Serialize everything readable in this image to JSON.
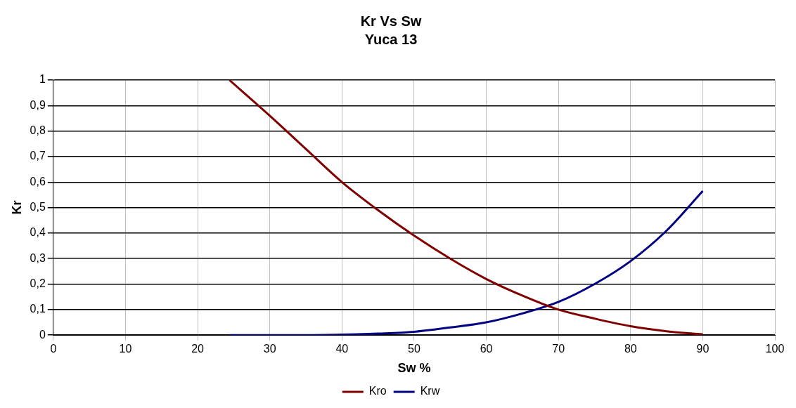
{
  "chart_data": {
    "type": "line",
    "title": "Kr Vs Sw",
    "subtitle": "Yuca 13",
    "xlabel": "Sw %",
    "ylabel": "Kr",
    "xlim": [
      0,
      100
    ],
    "xticks": [
      0,
      10,
      20,
      30,
      40,
      50,
      60,
      70,
      80,
      90,
      100
    ],
    "ylim": [
      0,
      1
    ],
    "yticks": [
      0,
      {
        "value": 0.1,
        "label": "0,1"
      },
      {
        "value": 0.2,
        "label": "0,2"
      },
      {
        "value": 0.3,
        "label": "0,3"
      },
      {
        "value": 0.4,
        "label": "0,4"
      },
      {
        "value": 0.5,
        "label": "0,5"
      },
      {
        "value": 0.6,
        "label": "0,6"
      },
      {
        "value": 0.7,
        "label": "0,7"
      },
      {
        "value": 0.8,
        "label": "0,8"
      },
      {
        "value": 0.9,
        "label": "0,9"
      },
      1
    ],
    "grid": true,
    "legend": "bottom",
    "marker": "none",
    "line_style": "solid",
    "series": [
      {
        "name": "Kro",
        "color": "#800000",
        "x": [
          24.4,
          30,
          35,
          40,
          45,
          50,
          55,
          60,
          65,
          70,
          75,
          80,
          85,
          90
        ],
        "values": [
          1,
          0.86,
          0.73,
          0.6,
          0.49,
          0.39,
          0.3,
          0.22,
          0.155,
          0.1,
          0.065,
          0.035,
          0.015,
          0.003
        ]
      },
      {
        "name": "Krw",
        "color": "#000080",
        "x": [
          24.4,
          30,
          35,
          40,
          45,
          50,
          55,
          60,
          65,
          70,
          75,
          80,
          85,
          90
        ],
        "values": [
          0,
          0,
          0,
          0.002,
          0.006,
          0.013,
          0.03,
          0.05,
          0.085,
          0.13,
          0.2,
          0.29,
          0.41,
          0.565
        ]
      }
    ]
  }
}
